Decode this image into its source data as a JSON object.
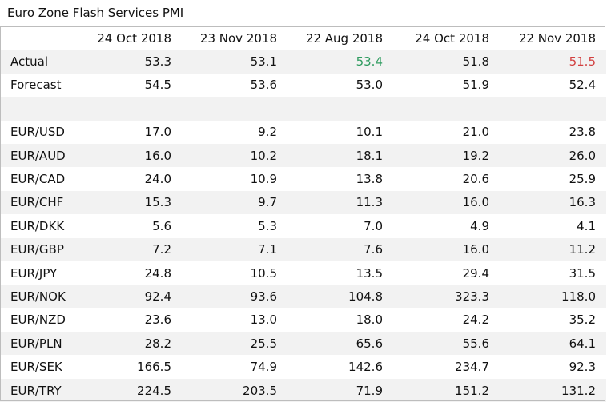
{
  "chart_data": {
    "type": "table",
    "title": "Euro Zone Flash Services PMI",
    "columns": [
      "",
      "24 Oct 2018",
      "23 Nov 2018",
      "22 Aug 2018",
      "24 Oct 2018",
      "22 Nov 2018"
    ],
    "rows": [
      {
        "label": "Actual",
        "values": [
          "53.3",
          "53.1",
          "53.4",
          "51.8",
          "51.5"
        ],
        "colors": [
          "",
          "",
          "#2e9b5f",
          "",
          "#d24040"
        ]
      },
      {
        "label": "Forecast",
        "values": [
          "54.5",
          "53.6",
          "53.0",
          "51.9",
          "52.4"
        ]
      },
      {
        "label": "",
        "values": [
          "",
          "",
          "",
          "",
          ""
        ]
      },
      {
        "label": "EUR/USD",
        "values": [
          "17.0",
          "9.2",
          "10.1",
          "21.0",
          "23.8"
        ]
      },
      {
        "label": "EUR/AUD",
        "values": [
          "16.0",
          "10.2",
          "18.1",
          "19.2",
          "26.0"
        ]
      },
      {
        "label": "EUR/CAD",
        "values": [
          "24.0",
          "10.9",
          "13.8",
          "20.6",
          "25.9"
        ]
      },
      {
        "label": "EUR/CHF",
        "values": [
          "15.3",
          "9.7",
          "11.3",
          "16.0",
          "16.3"
        ]
      },
      {
        "label": "EUR/DKK",
        "values": [
          "5.6",
          "5.3",
          "7.0",
          "4.9",
          "4.1"
        ]
      },
      {
        "label": "EUR/GBP",
        "values": [
          "7.2",
          "7.1",
          "7.6",
          "16.0",
          "11.2"
        ]
      },
      {
        "label": "EUR/JPY",
        "values": [
          "24.8",
          "10.5",
          "13.5",
          "29.4",
          "31.5"
        ]
      },
      {
        "label": "EUR/NOK",
        "values": [
          "92.4",
          "93.6",
          "104.8",
          "323.3",
          "118.0"
        ]
      },
      {
        "label": "EUR/NZD",
        "values": [
          "23.6",
          "13.0",
          "18.0",
          "24.2",
          "35.2"
        ]
      },
      {
        "label": "EUR/PLN",
        "values": [
          "28.2",
          "25.5",
          "65.6",
          "55.6",
          "64.1"
        ]
      },
      {
        "label": "EUR/SEK",
        "values": [
          "166.5",
          "74.9",
          "142.6",
          "234.7",
          "92.3"
        ]
      },
      {
        "label": "EUR/TRY",
        "values": [
          "224.5",
          "203.5",
          "71.9",
          "151.2",
          "131.2"
        ]
      }
    ],
    "colors": {
      "positive": "#2e9b5f",
      "negative": "#d24040",
      "band": "#f2f2f2",
      "border": "#bdbdbd"
    }
  }
}
